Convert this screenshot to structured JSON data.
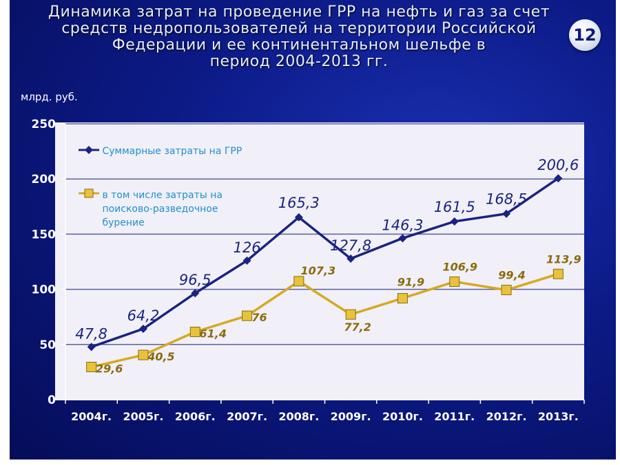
{
  "slide": {
    "title_lines": [
      "Динамика затрат на проведение ГРР на нефть и газ за счет",
      "средств недропользователей на территории Российской",
      "Федерации и ее континентальном шельфе в",
      "период 2004-2013 гг."
    ],
    "slide_number": "12"
  },
  "chart_data": {
    "type": "line",
    "title": "Динамика затрат на проведение ГРР на нефть и газ за счет средств недропользователей на территории Российской Федерации и ее континентальном шельфе в период 2004-2013 гг.",
    "ylabel": "млрд. руб.",
    "xlabel": "",
    "categories": [
      "2004г.",
      "2005г.",
      "2006г.",
      "2007г.",
      "2008г.",
      "2009г.",
      "2010г.",
      "2011г.",
      "2012г.",
      "2013г."
    ],
    "ylim": [
      0,
      250
    ],
    "yticks": [
      "0",
      "50",
      "100",
      "150",
      "200",
      "250"
    ],
    "grid": true,
    "legend_position": "top-left",
    "series": [
      {
        "name": "Суммарные затраты на ГРР",
        "color": "#1a2380",
        "marker": "diamond",
        "values": [
          47.8,
          64.2,
          96.5,
          126,
          165.3,
          127.8,
          146.3,
          161.5,
          168.5,
          200.6
        ],
        "labels": [
          "47,8",
          "64,2",
          "96,5",
          "126",
          "165,3",
          "127,8",
          "146,3",
          "161,5",
          "168,5",
          "200,6"
        ]
      },
      {
        "name": "в том числе затраты на поисково-разведочное бурение",
        "name_lines": [
          "в том числе затраты на",
          "поисково-разведочное",
          "бурение"
        ],
        "color": "#d6a920",
        "marker": "square",
        "values": [
          29.6,
          40.5,
          61.4,
          76,
          107.3,
          77.2,
          91.9,
          106.9,
          99.4,
          113.9
        ],
        "labels": [
          "29,6",
          "40,5",
          "61,4",
          "76",
          "107,3",
          "77,2",
          "91,9",
          "106,9",
          "99,4",
          "113,9"
        ]
      }
    ]
  }
}
